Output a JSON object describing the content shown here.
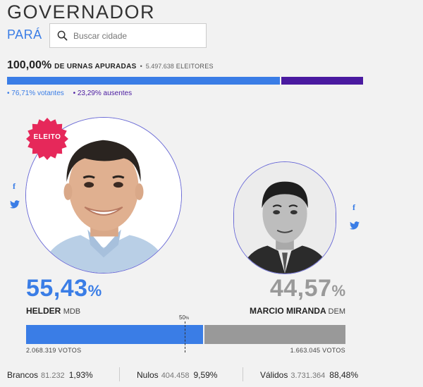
{
  "header": {
    "title": "GOVERNADOR",
    "state": "PARÁ",
    "search_placeholder": "Buscar cidade"
  },
  "urnas": {
    "percent": "100,00%",
    "label": "DE URNAS APURADAS",
    "separator": "•",
    "eleitores_count": "5.497.638",
    "eleitores_label": "ELEITORES",
    "progress_fraction": 1.0,
    "votantes_fraction": 0.7671
  },
  "legend": {
    "votantes": "• 76,71% votantes",
    "ausentes": "• 23,29% ausentes"
  },
  "badge": {
    "label": "ELEITO",
    "color": "#e6285a"
  },
  "colors": {
    "accent": "#3a7de6",
    "absent": "#4a1aa0",
    "loser": "#999999"
  },
  "candidates": [
    {
      "name": "HELDER",
      "party": "MDB",
      "percent_number": "55,43",
      "percent_sign": "%",
      "votes": "2.068.319 VOTOS",
      "share": 0.5543,
      "elected": true
    },
    {
      "name": "MARCIO MIRANDA",
      "party": "DEM",
      "percent_number": "44,57",
      "percent_sign": "%",
      "votes": "1.663.045 VOTOS",
      "share": 0.4457,
      "elected": false
    }
  ],
  "half_marker": {
    "value": "50",
    "sign": "%"
  },
  "stats": [
    {
      "label": "Brancos",
      "count": "81.232",
      "percent": "1,93%"
    },
    {
      "label": "Nulos",
      "count": "404.458",
      "percent": "9,59%"
    },
    {
      "label": "Válidos",
      "count": "3.731.364",
      "percent": "88,48%"
    }
  ]
}
